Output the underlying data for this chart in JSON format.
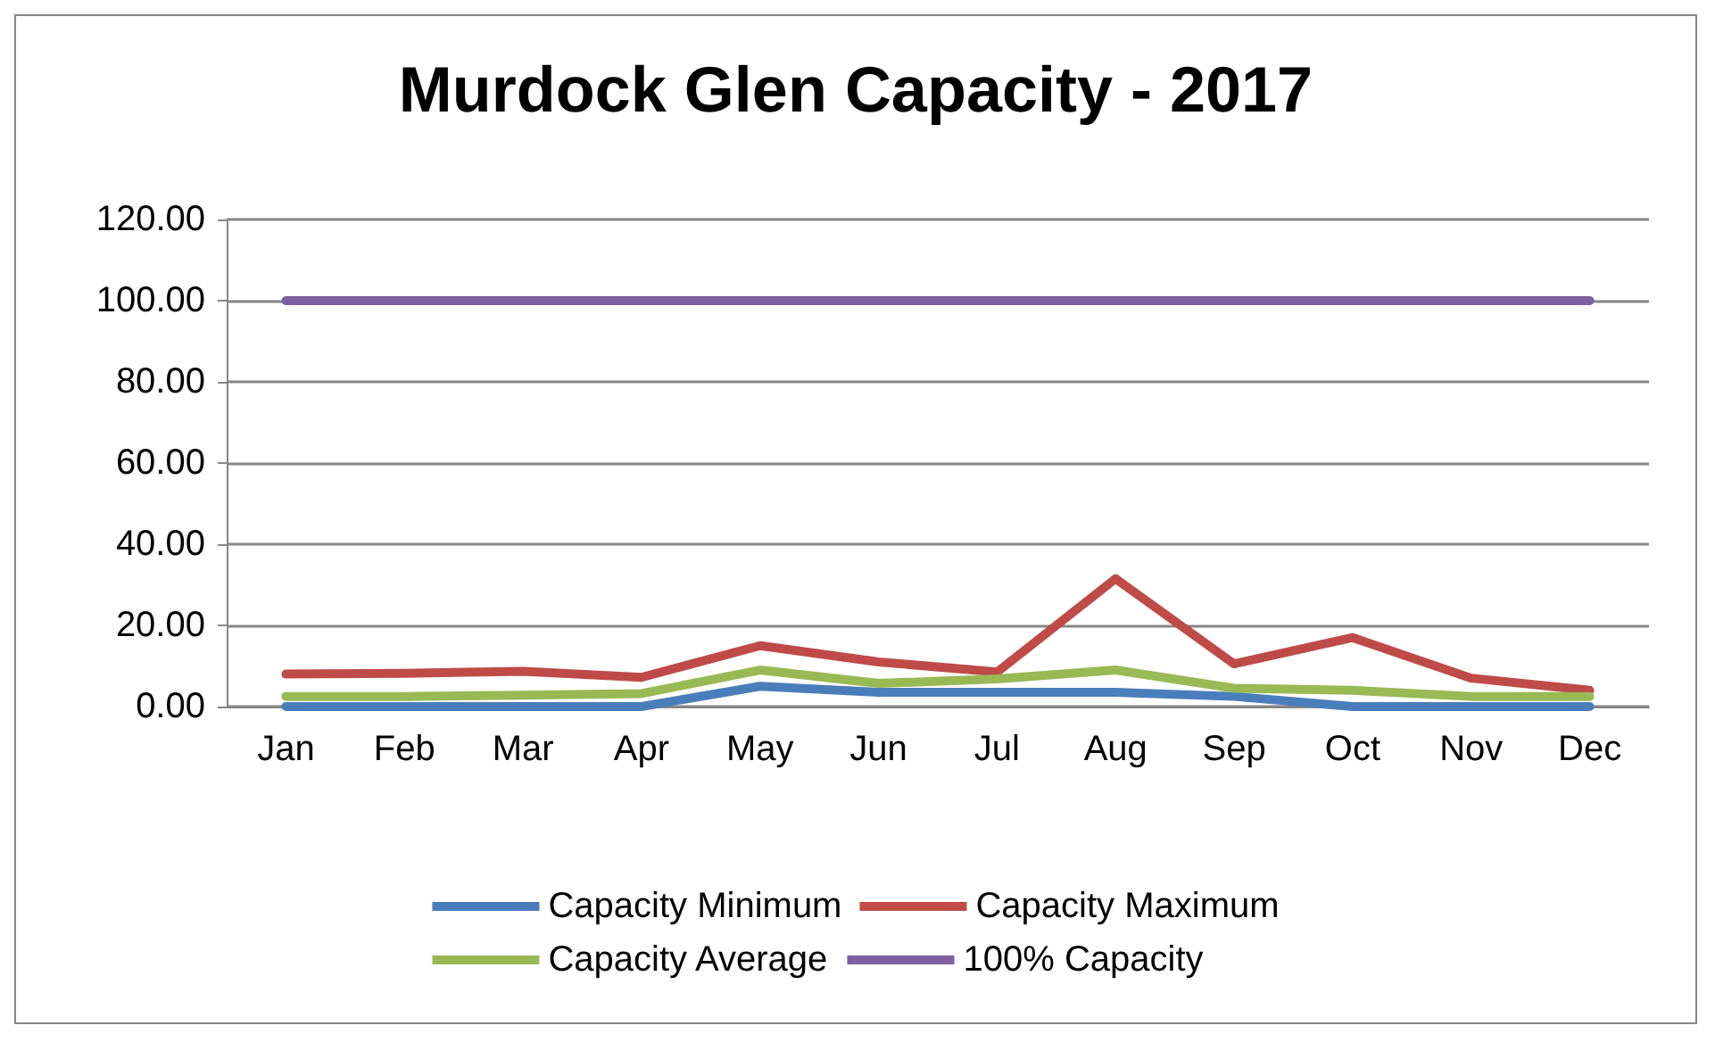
{
  "chart_data": {
    "type": "line",
    "title": "Murdock Glen Capacity - 2017",
    "categories": [
      "Jan",
      "Feb",
      "Mar",
      "Apr",
      "May",
      "Jun",
      "Jul",
      "Aug",
      "Sep",
      "Oct",
      "Nov",
      "Dec"
    ],
    "series": [
      {
        "name": "Capacity Minimum",
        "color": "#4a7ebb",
        "values": [
          0,
          0,
          0,
          0,
          5,
          3.5,
          3.5,
          3.5,
          2.5,
          0,
          0,
          0
        ]
      },
      {
        "name": "Capacity Maximum",
        "color": "#be4b48",
        "values": [
          8,
          8.2,
          8.7,
          7.2,
          15,
          11,
          8.5,
          31.5,
          10.5,
          17,
          7,
          4
        ]
      },
      {
        "name": "Capacity Average",
        "color": "#98b954",
        "values": [
          2.5,
          2.5,
          2.8,
          3.2,
          9,
          5.7,
          6.8,
          9,
          4.5,
          4,
          2.5,
          2.5
        ]
      },
      {
        "name": "100% Capacity",
        "color": "#7d60a0",
        "values": [
          100,
          100,
          100,
          100,
          100,
          100,
          100,
          100,
          100,
          100,
          100,
          100
        ]
      }
    ],
    "ylim": [
      0,
      120
    ],
    "yticks": [
      {
        "value": 0,
        "label": "0.00"
      },
      {
        "value": 20,
        "label": "20.00"
      },
      {
        "value": 40,
        "label": "40.00"
      },
      {
        "value": 60,
        "label": "60.00"
      },
      {
        "value": 80,
        "label": "80.00"
      },
      {
        "value": 100,
        "label": "100.00"
      },
      {
        "value": 120,
        "label": "120.00"
      }
    ],
    "grid": "y",
    "legend": "bottom",
    "marker": "none",
    "line_style": "solid"
  }
}
